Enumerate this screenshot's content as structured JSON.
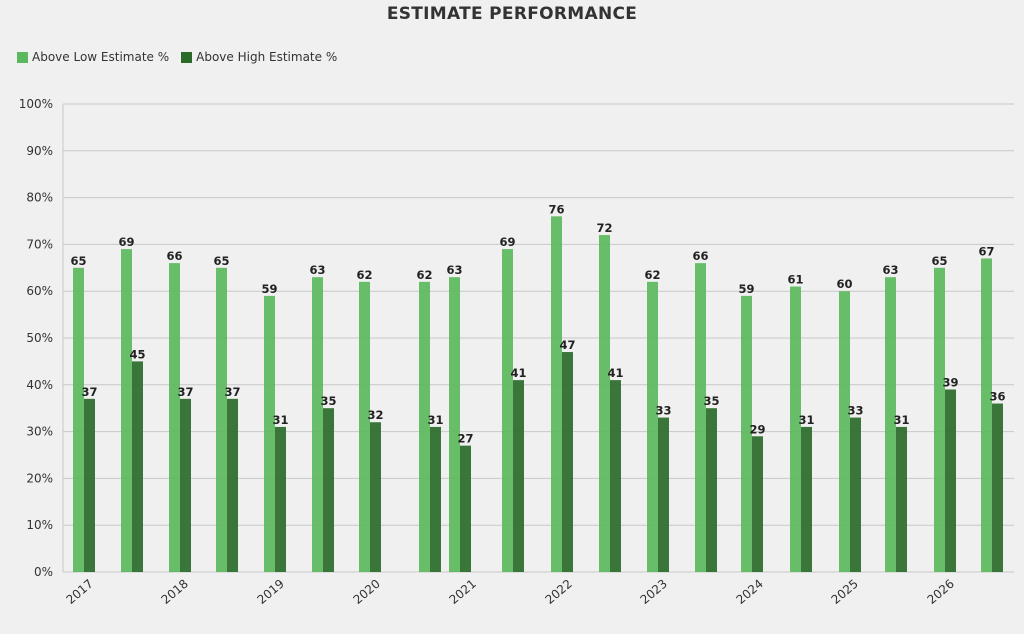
{
  "chart_data": {
    "type": "bar",
    "title": "ESTIMATE PERFORMANCE",
    "xlabel": "",
    "ylabel": "",
    "ylim": [
      0,
      100
    ],
    "y_ticks": [
      "0%",
      "10%",
      "20%",
      "30%",
      "40%",
      "50%",
      "60%",
      "70%",
      "80%",
      "90%",
      "100%"
    ],
    "x_tick_labels": [
      "2017",
      "2018",
      "2019",
      "2020",
      "2021",
      "2022",
      "2023",
      "2024",
      "2025",
      "2026"
    ],
    "grid": true,
    "legend_position": "top-left",
    "colors": {
      "low": "#5cb85c",
      "high": "#2a6b2a",
      "background": "#f0f0f0",
      "grid": "#c8c8c8"
    },
    "series": [
      {
        "name": "Above Low Estimate %",
        "values": [
          65,
          69,
          66,
          65,
          59,
          63,
          62,
          62,
          63,
          69,
          76,
          72,
          62,
          66,
          59,
          61,
          60,
          63,
          65,
          67
        ]
      },
      {
        "name": "Above High Estimate %",
        "values": [
          37,
          45,
          37,
          37,
          31,
          35,
          32,
          31,
          27,
          41,
          47,
          41,
          33,
          35,
          29,
          31,
          33,
          31,
          39,
          36
        ]
      }
    ]
  }
}
